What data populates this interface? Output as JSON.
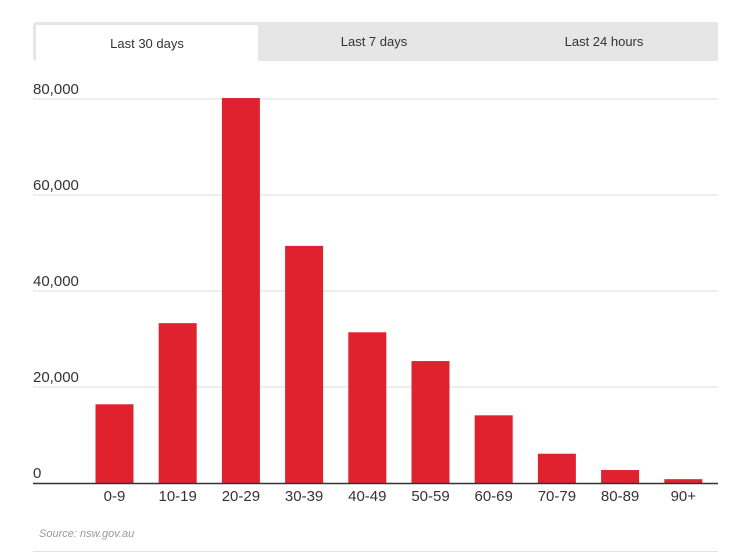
{
  "tabs": [
    {
      "label": "Last 30 days",
      "active": true
    },
    {
      "label": "Last 7 days",
      "active": false
    },
    {
      "label": "Last 24 hours",
      "active": false
    }
  ],
  "source": "Source: nsw.gov.au",
  "colors": {
    "bar": "#e0222f",
    "grid": "#dddddd",
    "axis": "#333333"
  },
  "chart_data": {
    "type": "bar",
    "title": "",
    "xlabel": "",
    "ylabel": "",
    "categories": [
      "0-9",
      "10-19",
      "20-29",
      "30-39",
      "40-49",
      "50-59",
      "60-69",
      "70-79",
      "80-89",
      "90+"
    ],
    "values": [
      16400,
      33300,
      80200,
      49400,
      31400,
      25400,
      14100,
      6100,
      2700,
      800
    ],
    "yticks": [
      0,
      20000,
      40000,
      60000,
      80000
    ],
    "ytick_labels": [
      "0",
      "20,000",
      "40,000",
      "60,000",
      "80,000"
    ],
    "ylim": [
      0,
      80000
    ],
    "grid": true
  }
}
